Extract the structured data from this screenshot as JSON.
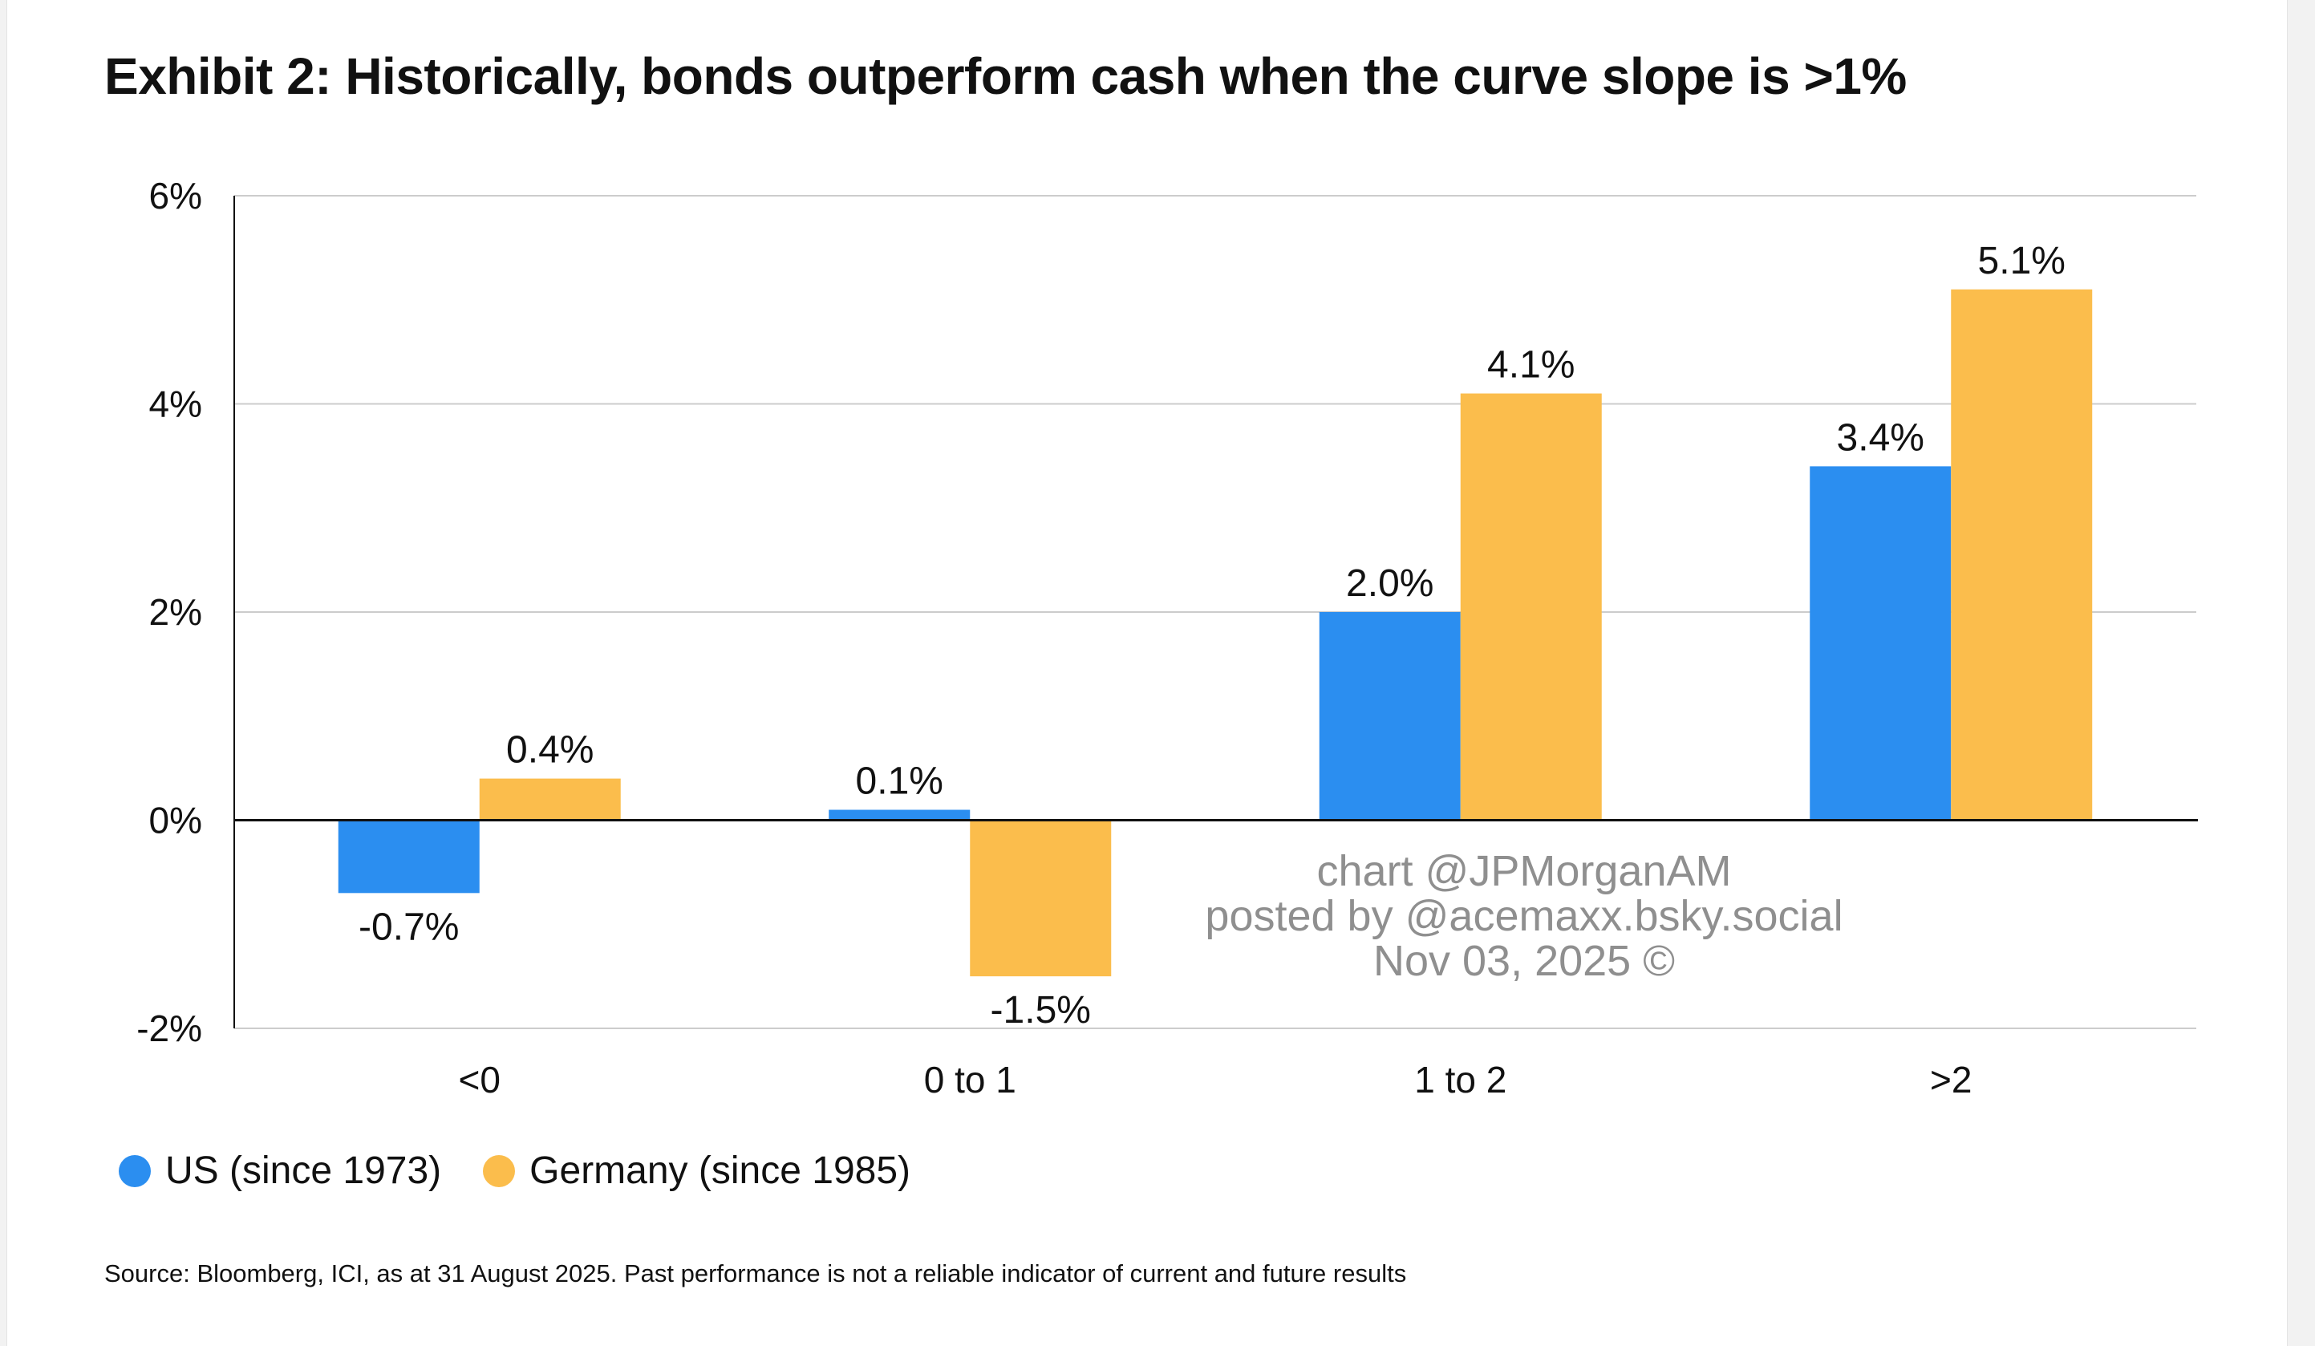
{
  "title": "Exhibit 2: Historically, bonds outperform cash when the curve slope is >1%",
  "source": "Source: Bloomberg, ICI, as at 31 August 2025. Past performance is not a reliable indicator of current and future results",
  "watermark": {
    "line1": "chart @JPMorganAM",
    "line2": "posted by @acemaxx.bsky.social",
    "line3": "Nov 03, 2025 ©"
  },
  "colors": {
    "us": "#2b8ef0",
    "germany": "#fbbd4c",
    "grid": "#cccccc",
    "axis": "#111111"
  },
  "chart_data": {
    "type": "bar",
    "title": "Exhibit 2: Historically, bonds outperform cash when the curve slope is >1%",
    "xlabel": "",
    "ylabel": "",
    "categories": [
      "<0",
      "0 to 1",
      "1 to 2",
      ">2"
    ],
    "ylim": [
      -2,
      6
    ],
    "yticks": [
      -2,
      0,
      2,
      4,
      6
    ],
    "ytick_labels": [
      "-2%",
      "0%",
      "2%",
      "4%",
      "6%"
    ],
    "grid": true,
    "legend_position": "bottom-left",
    "series": [
      {
        "name": "US (since 1973)",
        "color": "#2b8ef0",
        "values": [
          -0.7,
          0.1,
          2.0,
          3.4
        ],
        "labels": [
          "-0.7%",
          "0.1%",
          "2.0%",
          "3.4%"
        ]
      },
      {
        "name": "Germany (since 1985)",
        "color": "#fbbd4c",
        "values": [
          0.4,
          -1.5,
          4.1,
          5.1
        ],
        "labels": [
          "0.4%",
          "-1.5%",
          "4.1%",
          "5.1%"
        ]
      }
    ]
  }
}
